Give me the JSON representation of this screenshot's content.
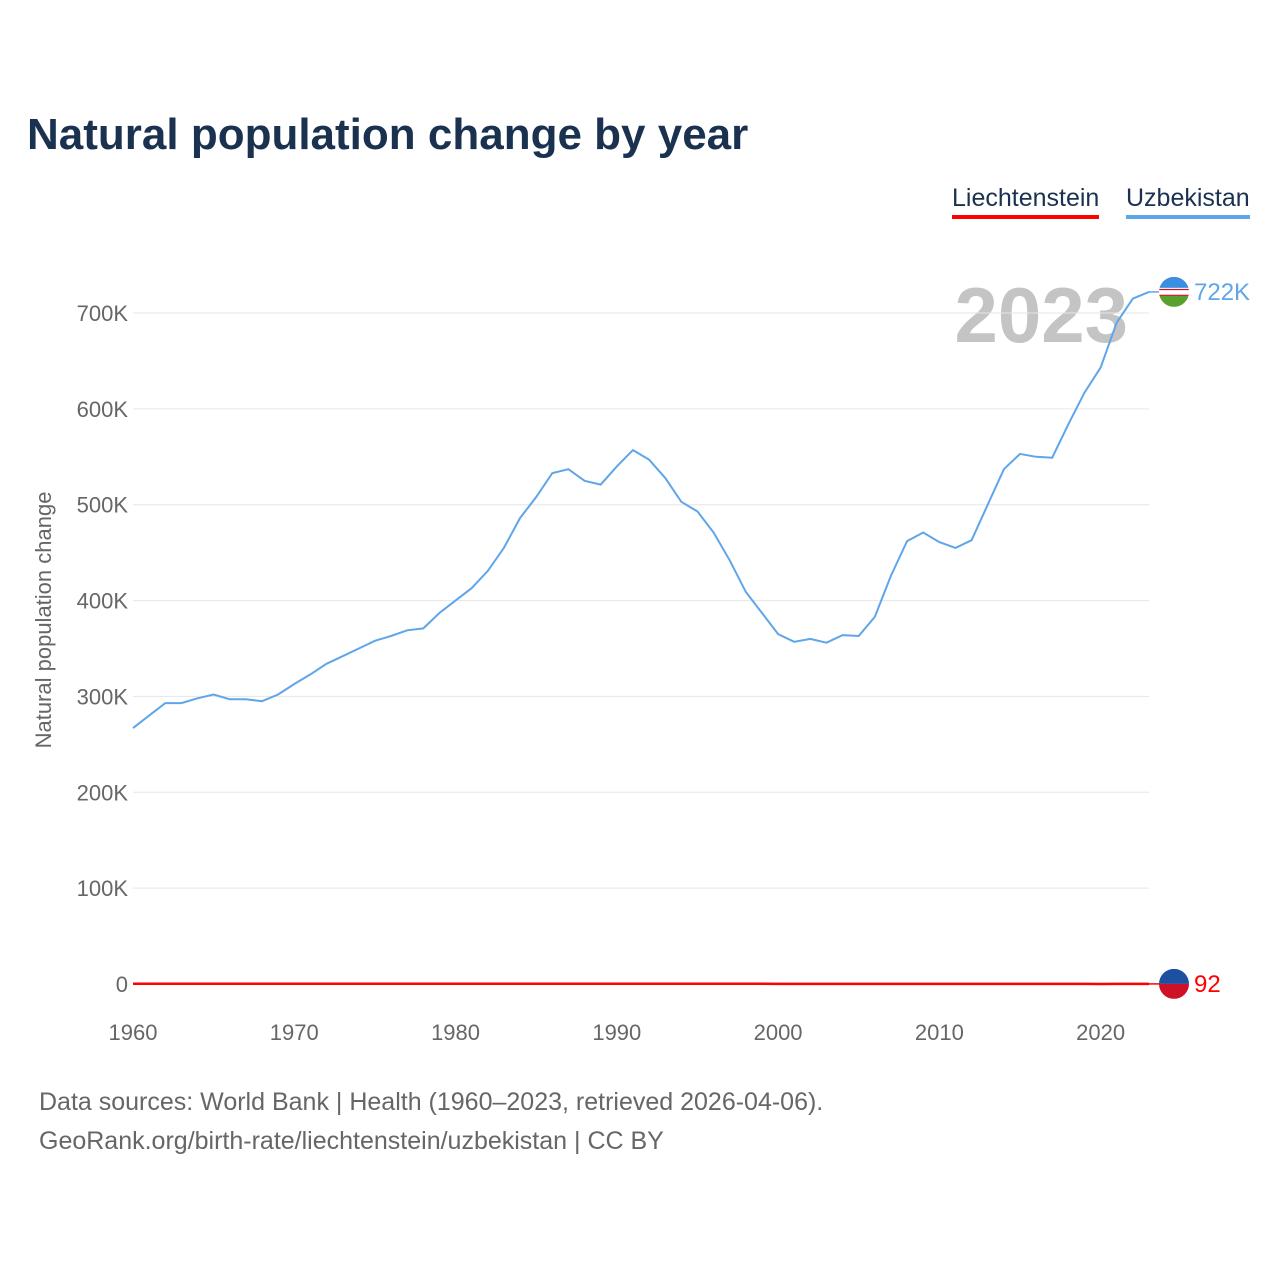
{
  "chart_data": {
    "type": "line",
    "title": "Natural population change by year",
    "xlabel": "",
    "ylabel": "Natural population change",
    "xlim": [
      1960,
      2023
    ],
    "ylim": [
      0,
      750000
    ],
    "x_ticks": [
      "1960",
      "1970",
      "1980",
      "1990",
      "2000",
      "2010",
      "2020"
    ],
    "y_ticks": [
      {
        "v": 0,
        "label": "0"
      },
      {
        "v": 100000,
        "label": "100K"
      },
      {
        "v": 200000,
        "label": "200K"
      },
      {
        "v": 300000,
        "label": "300K"
      },
      {
        "v": 400000,
        "label": "400K"
      },
      {
        "v": 500000,
        "label": "500K"
      },
      {
        "v": 600000,
        "label": "600K"
      },
      {
        "v": 700000,
        "label": "700K"
      }
    ],
    "grid": true,
    "legend_position": "top-right",
    "year_label": "2023",
    "x": [
      1960,
      1961,
      1962,
      1963,
      1964,
      1965,
      1966,
      1967,
      1968,
      1969,
      1970,
      1971,
      1972,
      1973,
      1974,
      1975,
      1976,
      1977,
      1978,
      1979,
      1980,
      1981,
      1982,
      1983,
      1984,
      1985,
      1986,
      1987,
      1988,
      1989,
      1990,
      1991,
      1992,
      1993,
      1994,
      1995,
      1996,
      1997,
      1998,
      1999,
      2000,
      2001,
      2002,
      2003,
      2004,
      2005,
      2006,
      2007,
      2008,
      2009,
      2010,
      2011,
      2012,
      2013,
      2014,
      2015,
      2016,
      2017,
      2018,
      2019,
      2020,
      2021,
      2022,
      2023
    ],
    "series": [
      {
        "name": "Liechtenstein",
        "color": "#ff0000",
        "end_label": "92",
        "values": [
          230,
          240,
          250,
          260,
          270,
          260,
          250,
          255,
          250,
          240,
          230,
          220,
          215,
          200,
          190,
          180,
          175,
          170,
          180,
          175,
          170,
          190,
          180,
          200,
          190,
          185,
          170,
          190,
          180,
          200,
          170,
          200,
          190,
          180,
          170,
          175,
          190,
          160,
          180,
          170,
          150,
          140,
          150,
          120,
          130,
          110,
          120,
          100,
          110,
          120,
          90,
          100,
          110,
          100,
          90,
          110,
          80,
          100,
          60,
          70,
          50,
          80,
          60,
          92
        ]
      },
      {
        "name": "Uzbekistan",
        "color": "#5fa5ea",
        "end_label": "722K",
        "values": [
          267000,
          280000,
          293000,
          293000,
          298000,
          302000,
          297000,
          297000,
          295000,
          302000,
          313000,
          323000,
          334000,
          342000,
          350000,
          358000,
          363000,
          369000,
          371000,
          387000,
          400000,
          413000,
          431000,
          455000,
          486000,
          508000,
          533000,
          537000,
          525000,
          521000,
          540000,
          557000,
          547000,
          528000,
          503000,
          493000,
          471000,
          442000,
          409000,
          387000,
          365000,
          357000,
          360000,
          356000,
          364000,
          363000,
          383000,
          426000,
          462000,
          471000,
          461000,
          455000,
          463000,
          500000,
          537000,
          553000,
          550000,
          549000,
          584000,
          617000,
          643000,
          690000,
          715000,
          722000
        ]
      }
    ]
  },
  "footer": {
    "line1": "Data sources: World Bank | Health (1960–2023, retrieved 2026-04-06).",
    "line2": "GeoRank.org/birth-rate/liechtenstein/uzbekistan | CC BY"
  }
}
